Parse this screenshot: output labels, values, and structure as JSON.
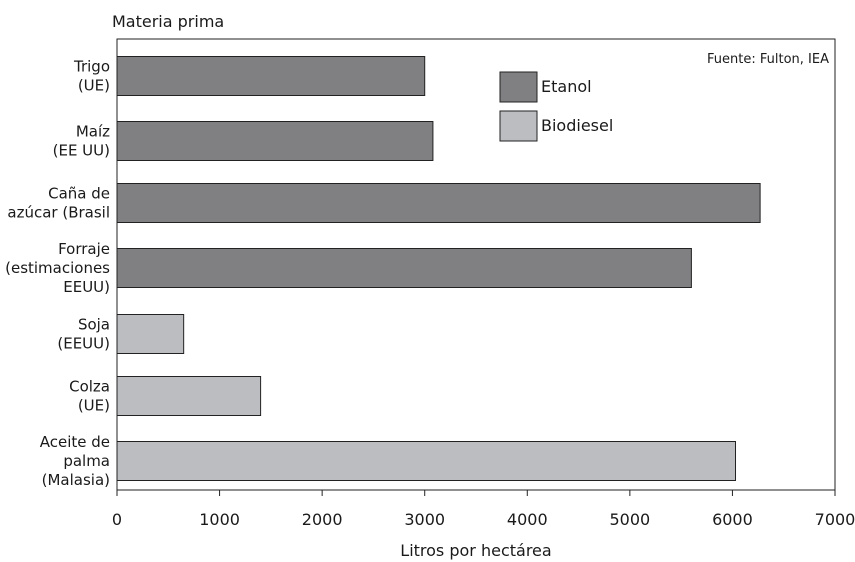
{
  "chart_data": {
    "type": "bar",
    "orientation": "horizontal",
    "ylabel": "Materia prima",
    "xlabel": "Litros por hectárea",
    "source": "Fuente: Fulton, IEA",
    "xlim": [
      0,
      7000
    ],
    "xticks": [
      0,
      1000,
      2000,
      3000,
      4000,
      5000,
      6000,
      7000
    ],
    "grid": false,
    "legend_position": "top-right",
    "colors": {
      "Etanol": "#808083",
      "Biodiesel": "#bcbdc0"
    },
    "series": [
      {
        "name": "Etanol"
      },
      {
        "name": "Biodiesel"
      }
    ],
    "bars": [
      {
        "label_lines": [
          "Trigo",
          "(UE)"
        ],
        "value": 3000,
        "series": "Etanol"
      },
      {
        "label_lines": [
          "Maíz",
          "(EE UU)"
        ],
        "value": 3080,
        "series": "Etanol"
      },
      {
        "label_lines": [
          "Caña de",
          "azúcar (Brasil"
        ],
        "value": 6270,
        "series": "Etanol"
      },
      {
        "label_lines": [
          "Forraje",
          "(estimaciones",
          "EEUU)"
        ],
        "value": 5600,
        "series": "Etanol"
      },
      {
        "label_lines": [
          "Soja",
          "(EEUU)"
        ],
        "value": 650,
        "series": "Biodiesel"
      },
      {
        "label_lines": [
          "Colza",
          "(UE)"
        ],
        "value": 1400,
        "series": "Biodiesel"
      },
      {
        "label_lines": [
          "Aceite de",
          "palma",
          "(Malasia)"
        ],
        "value": 6030,
        "series": "Biodiesel"
      }
    ]
  }
}
